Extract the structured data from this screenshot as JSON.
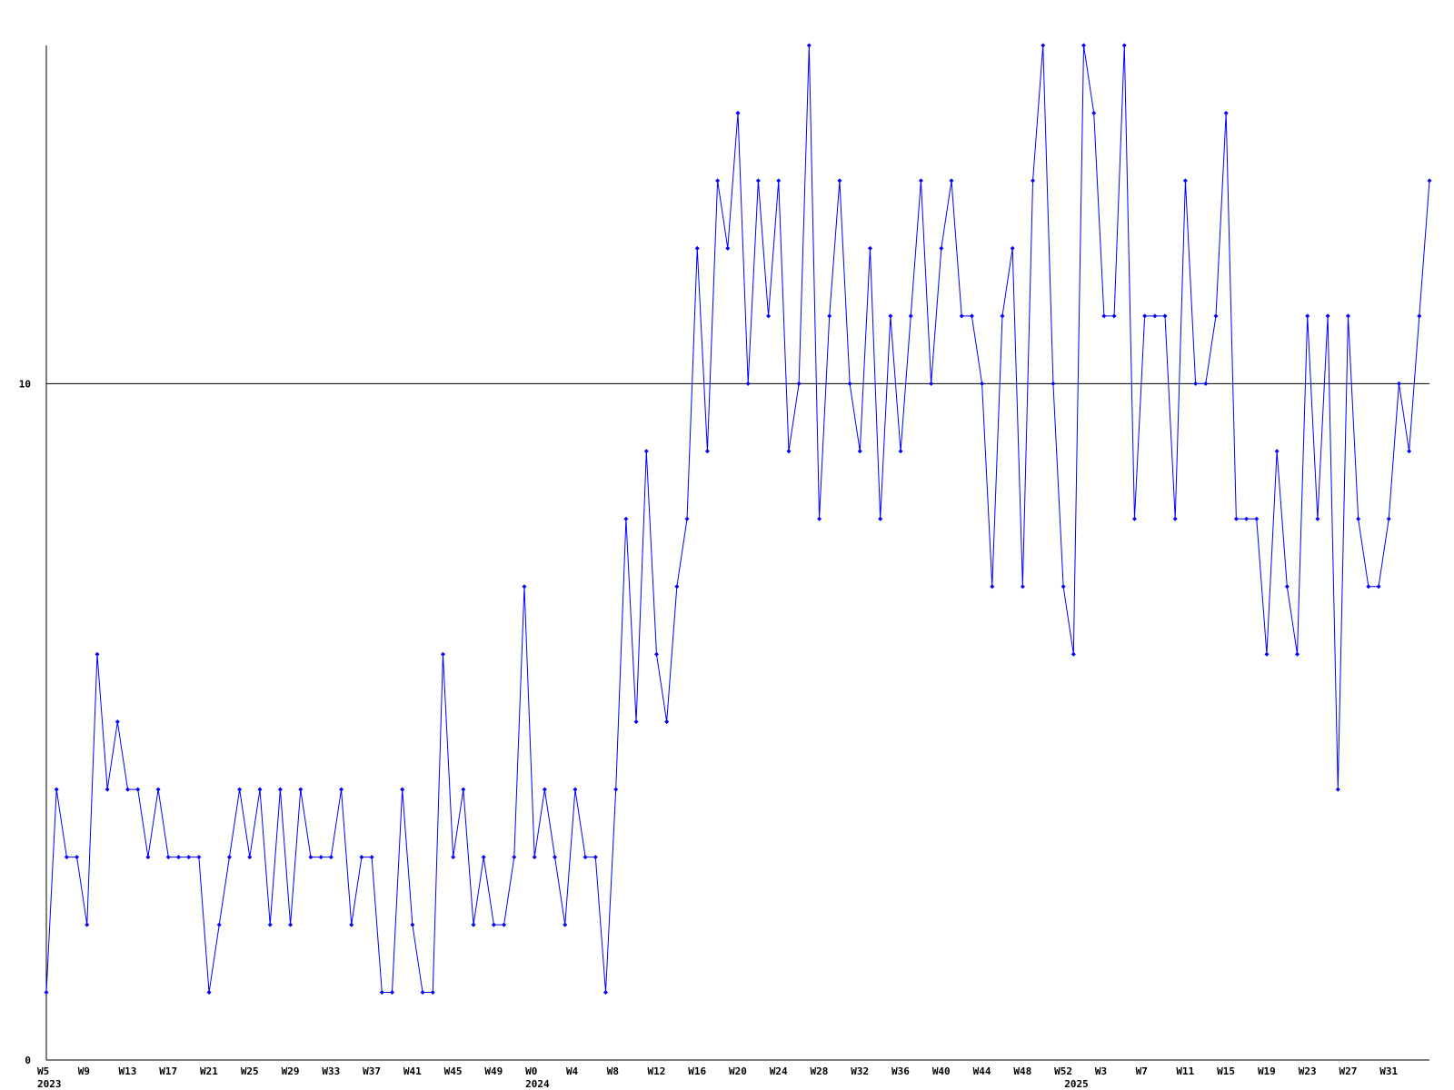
{
  "chart_data": {
    "type": "line",
    "categories": [
      "W5",
      null,
      null,
      null,
      "W9",
      null,
      null,
      null,
      "W13",
      null,
      null,
      null,
      "W17",
      null,
      null,
      null,
      "W21",
      null,
      null,
      null,
      "W25",
      null,
      null,
      null,
      "W29",
      null,
      null,
      null,
      "W33",
      null,
      null,
      null,
      "W37",
      null,
      null,
      null,
      "W41",
      null,
      null,
      null,
      "W45",
      null,
      null,
      null,
      "W49",
      null,
      null,
      null,
      "W0",
      null,
      null,
      null,
      "W4",
      null,
      null,
      null,
      "W8",
      null,
      null,
      null,
      "W12",
      null,
      null,
      null,
      "W16",
      null,
      null,
      null,
      "W20",
      null,
      null,
      null,
      "W24",
      null,
      null,
      null,
      "W28",
      null,
      null,
      null,
      "W32",
      null,
      null,
      null,
      "W36",
      null,
      null,
      null,
      "W40",
      null,
      null,
      null,
      "W44",
      null,
      null,
      null,
      "W48",
      null,
      null,
      null,
      "W52",
      null,
      null,
      null,
      "W3",
      null,
      null,
      null,
      "W7",
      null,
      null,
      null,
      "W11",
      null,
      null,
      null,
      "W15",
      null,
      null,
      null,
      "W19",
      null,
      null,
      null,
      "W23",
      null,
      null,
      null,
      "W27",
      null,
      null,
      null,
      "W31",
      null,
      null,
      null,
      null
    ],
    "years": [
      "2023",
      null,
      null,
      null,
      null,
      null,
      null,
      null,
      null,
      null,
      null,
      null,
      null,
      null,
      null,
      null,
      null,
      null,
      null,
      null,
      null,
      null,
      null,
      null,
      null,
      null,
      null,
      null,
      null,
      null,
      null,
      null,
      null,
      null,
      null,
      null,
      null,
      null,
      null,
      null,
      null,
      null,
      null,
      null,
      null,
      null,
      null,
      null,
      "2024",
      null,
      null,
      null,
      null,
      null,
      null,
      null,
      null,
      null,
      null,
      null,
      null,
      null,
      null,
      null,
      null,
      null,
      null,
      null,
      null,
      null,
      null,
      null,
      null,
      null,
      null,
      null,
      null,
      null,
      null,
      null,
      null,
      null,
      null,
      null,
      null,
      null,
      null,
      null,
      null,
      null,
      null,
      null,
      null,
      null,
      null,
      null,
      null,
      null,
      null,
      null,
      null,
      "2025",
      null,
      null,
      null,
      null,
      null,
      null,
      null,
      null,
      null,
      null,
      null,
      null,
      null,
      null,
      null,
      null,
      null,
      null,
      null,
      null,
      null,
      null,
      null,
      null,
      null,
      null,
      null,
      null,
      null,
      null,
      null,
      null,
      null,
      null,
      null
    ],
    "series": [
      {
        "color": "#0000ff",
        "values": [
          1,
          4,
          3,
          3,
          2,
          6,
          4,
          5,
          4,
          4,
          3,
          4,
          3,
          3,
          3,
          3,
          1,
          2,
          3,
          4,
          3,
          4,
          2,
          4,
          2,
          4,
          3,
          3,
          3,
          4,
          2,
          3,
          3,
          1,
          1,
          4,
          2,
          1,
          1,
          6,
          3,
          4,
          2,
          3,
          2,
          2,
          3,
          7,
          3,
          4,
          3,
          2,
          4,
          3,
          3,
          1,
          4,
          8,
          5,
          9,
          6,
          5,
          7,
          8,
          12,
          9,
          13,
          12,
          14,
          10,
          13,
          11,
          13,
          9,
          10,
          15,
          8,
          11,
          13,
          10,
          9,
          12,
          8,
          11,
          9,
          11,
          13,
          10,
          12,
          13,
          11,
          11,
          10,
          7,
          11,
          12,
          7,
          13,
          15,
          10,
          7,
          6,
          15,
          14,
          11,
          11,
          15,
          8,
          11,
          11,
          11,
          8,
          13,
          10,
          10,
          11,
          14,
          8,
          8,
          8,
          6,
          9,
          7,
          6,
          11,
          8,
          11,
          4,
          11,
          8,
          7,
          7,
          8,
          10,
          9,
          11,
          13
        ]
      }
    ],
    "ylim": [
      0,
      15
    ],
    "yticks": [
      0,
      10
    ],
    "grid": true
  }
}
